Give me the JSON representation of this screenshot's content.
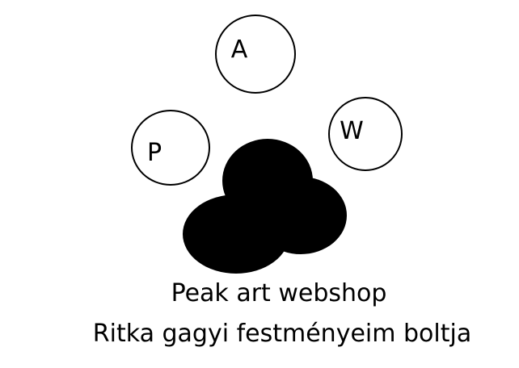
{
  "logo": {
    "letters": {
      "top": "A",
      "left": "P",
      "right": "W"
    },
    "paw_color": "#000000",
    "outline_color": "#000000",
    "background": "#ffffff"
  },
  "caption": {
    "title": "Peak art webshop",
    "subtitle": "Ritka gagyi festményeim boltja"
  }
}
